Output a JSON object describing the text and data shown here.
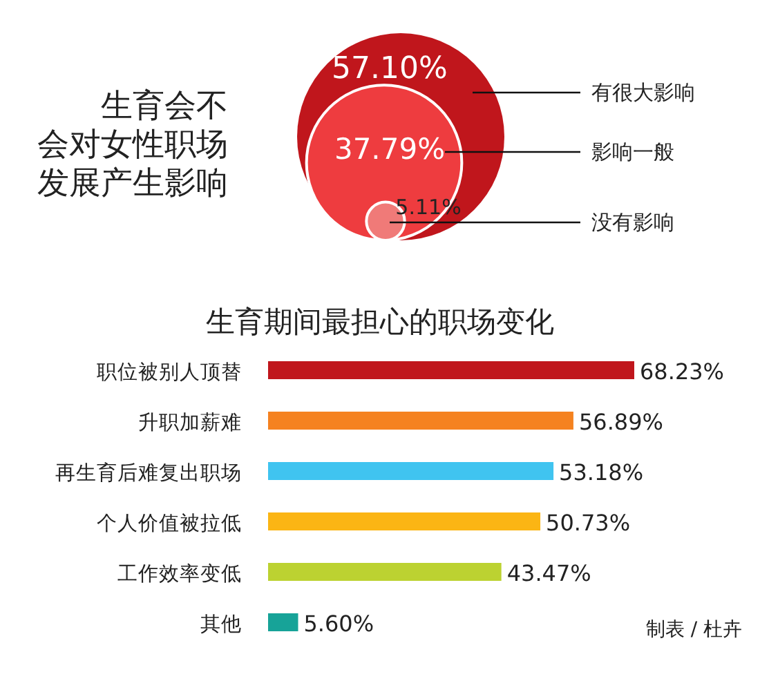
{
  "chart_data": [
    {
      "type": "other",
      "title": "生育会不会对女性职场发展产生影响",
      "categories": [
        "有很大影响",
        "影响一般",
        "没有影响"
      ],
      "values": [
        57.1,
        37.79,
        5.11
      ],
      "value_labels": [
        "57.10%",
        "37.79%",
        "5.11%"
      ],
      "colors": [
        "#c0161c",
        "#ee3c3f",
        "#f07a78"
      ]
    },
    {
      "type": "bar",
      "orientation": "horizontal",
      "title": "生育期间最担心的职场变化",
      "categories": [
        "职位被别人顶替",
        "升职加薪难",
        "再生育后难复出职场",
        "个人价值被拉低",
        "工作效率变低",
        "其他"
      ],
      "values": [
        68.23,
        56.89,
        53.18,
        50.73,
        43.47,
        5.6
      ],
      "value_labels": [
        "68.23%",
        "56.89%",
        "53.18%",
        "50.73%",
        "43.47%",
        "5.60%"
      ],
      "colors": [
        "#c0161c",
        "#f58220",
        "#40c4f0",
        "#fbb514",
        "#bcd231",
        "#17a398"
      ],
      "xlim": [
        0,
        68.23
      ],
      "tick_labels": "y",
      "annotations": [
        "制表 / 杜卉"
      ]
    }
  ]
}
